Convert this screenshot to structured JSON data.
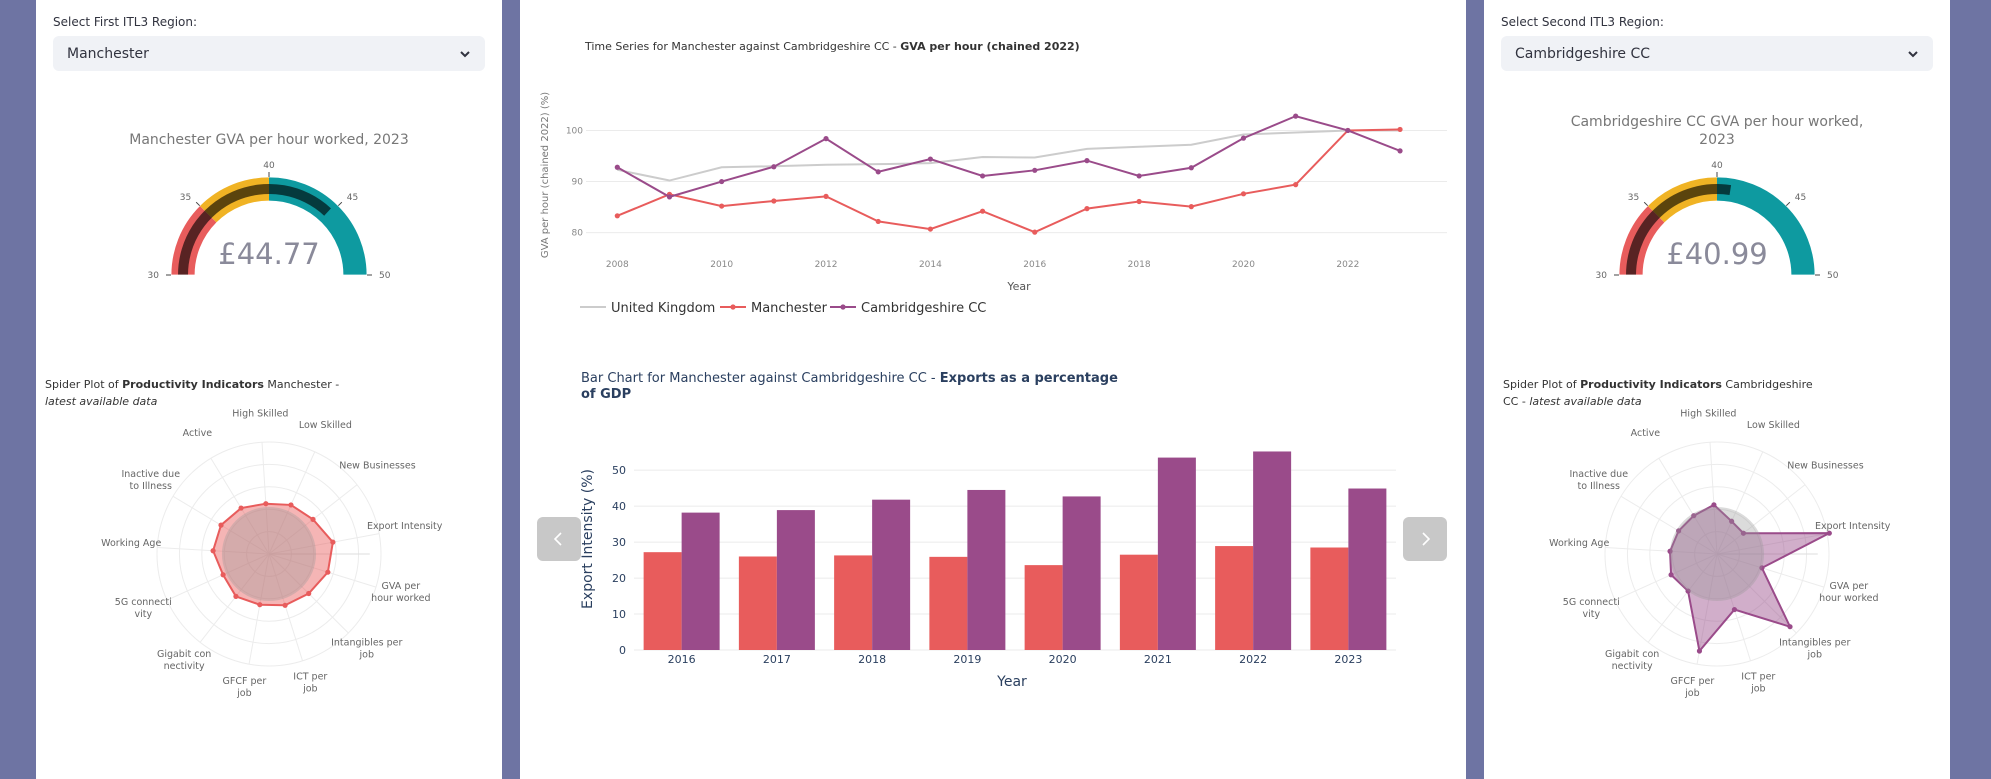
{
  "left": {
    "select_label": "Select First ITL3 Region:",
    "selected": "Manchester",
    "gauge": {
      "title": "Manchester GVA per hour worked, 2023",
      "value_label": "£44.77",
      "value": 44.77,
      "min": 30,
      "max": 50,
      "ticks": [
        "30",
        "35",
        "40",
        "45",
        "50"
      ]
    },
    "spider": {
      "title_pre": "Spider Plot of ",
      "title_bold": "Productivity Indicators",
      "title_post": " Manchester -",
      "subtitle": "latest available data",
      "color": "#e85c5c"
    }
  },
  "right": {
    "select_label": "Select Second ITL3 Region:",
    "selected": "Cambridgeshire CC",
    "gauge": {
      "title_line1": "Cambridgeshire CC GVA per hour worked,",
      "title_line2": "2023",
      "value_label": "£40.99",
      "value": 40.99,
      "min": 30,
      "max": 50,
      "ticks": [
        "30",
        "35",
        "40",
        "45",
        "50"
      ]
    },
    "spider": {
      "title_pre": "Spider Plot of ",
      "title_bold": "Productivity Indicators",
      "title_post": " Cambridgeshire",
      "subtitle_pre": "CC - ",
      "subtitle": "latest available data",
      "color": "#9a4b8a"
    }
  },
  "gauge_colors": {
    "red": "#e85c5c",
    "yellow": "#f0b324",
    "teal": "#0e9aa0",
    "bar": "#000000"
  },
  "spider_labels": [
    "Low Skilled",
    "New Businesses",
    "Export Intensity",
    "GVA per hour worked",
    "Intangibles per job",
    "ICT per job",
    "GFCF per job",
    "Gigabit con nectivity",
    "5G connecti vity",
    "Working Age",
    "Inactive due to Illness",
    "Active",
    "High Skilled"
  ],
  "chart_data": [
    {
      "type": "line",
      "title_pre": "Time Series for Manchester against Cambridgeshire CC - ",
      "title_bold": "GVA per hour (chained 2022)",
      "xlabel": "Year",
      "ylabel": "GVA per hour (chained 2022) (%)",
      "xlim": [
        2007.4,
        2023.9
      ],
      "ylim": [
        77,
        104
      ],
      "xticks": [
        2008,
        2010,
        2012,
        2014,
        2016,
        2018,
        2020,
        2022
      ],
      "yticks": [
        80,
        90,
        100
      ],
      "x": [
        2008,
        2009,
        2010,
        2011,
        2012,
        2013,
        2014,
        2015,
        2016,
        2017,
        2018,
        2019,
        2020,
        2021,
        2022,
        2023
      ],
      "series": [
        {
          "name": "United Kingdom",
          "color": "#cccccc",
          "markers": false,
          "values": [
            92.3,
            90.2,
            92.8,
            93.0,
            93.3,
            93.4,
            93.6,
            94.8,
            94.7,
            96.4,
            96.8,
            97.2,
            99.2,
            99.6,
            100.0,
            100.0
          ]
        },
        {
          "name": "Manchester",
          "color": "#e85c5c",
          "markers": true,
          "values": [
            83.3,
            87.5,
            85.2,
            86.2,
            87.1,
            82.2,
            80.7,
            84.2,
            80.1,
            84.7,
            86.1,
            85.1,
            87.6,
            89.4,
            100.0,
            100.2
          ]
        },
        {
          "name": "Cambridgeshire CC",
          "color": "#9a4b8a",
          "markers": true,
          "values": [
            92.8,
            87.0,
            90.0,
            92.9,
            98.4,
            91.9,
            94.4,
            91.1,
            92.2,
            94.1,
            91.1,
            92.7,
            98.5,
            102.8,
            100.0,
            96.0
          ]
        }
      ]
    },
    {
      "type": "bar",
      "title_pre": "Bar Chart for Manchester against Cambridgeshire CC - ",
      "title_bold_1": "Exports as a percentage",
      "title_bold_2": "of GDP",
      "xlabel": "Year",
      "ylabel": "Export Intensity (%)",
      "ylim": [
        0,
        57
      ],
      "yticks": [
        0,
        10,
        20,
        30,
        40,
        50
      ],
      "categories": [
        "2016",
        "2017",
        "2018",
        "2019",
        "2020",
        "2021",
        "2022",
        "2023"
      ],
      "series": [
        {
          "name": "Manchester",
          "color": "#e85c5c",
          "values": [
            27.2,
            26.0,
            26.3,
            25.9,
            23.6,
            26.5,
            28.9,
            28.5
          ]
        },
        {
          "name": "Cambridgeshire CC",
          "color": "#9a4b8a",
          "values": [
            38.2,
            38.9,
            41.8,
            44.5,
            42.7,
            53.5,
            55.2,
            44.9
          ]
        }
      ]
    }
  ]
}
